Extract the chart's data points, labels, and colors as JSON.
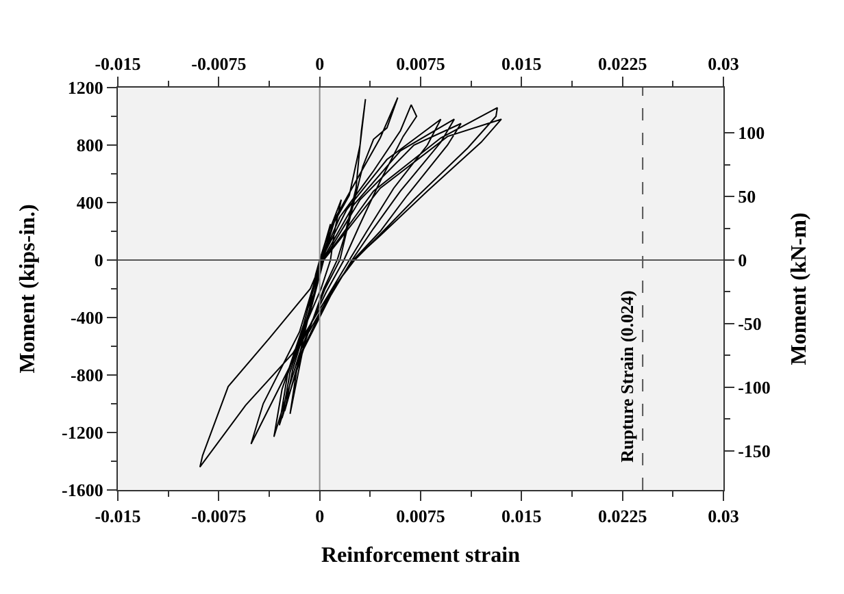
{
  "chart_data": {
    "type": "line",
    "xlabel": "Reinforcement strain",
    "ylabel": "Moment (kips-in.)",
    "y2label": "Moment (kN-m)",
    "xlim": [
      -0.015,
      0.03
    ],
    "xticks": [
      -0.015,
      -0.0075,
      0,
      0.0075,
      0.015,
      0.0225,
      0.03
    ],
    "x2lim": [
      -0.015,
      0.03
    ],
    "x2ticks": [
      -0.015,
      -0.0075,
      0,
      0.0075,
      0.015,
      0.0225,
      0.03
    ],
    "ylim": [
      -1600,
      1200
    ],
    "yticks": [
      -1600,
      -1200,
      -800,
      -400,
      0,
      400,
      800,
      1200
    ],
    "y2lim": [
      -180.8,
      135.6
    ],
    "y2ticks": [
      -150,
      -100,
      -50,
      0,
      50,
      100
    ],
    "grid": false,
    "marker": "none",
    "line_style": "solid",
    "ref_lines": [
      {
        "axis": "x",
        "value": 0,
        "color": "#8c8c8c",
        "line_style": "solid"
      },
      {
        "axis": "y",
        "value": 0,
        "color": "#555555",
        "line_style": "solid"
      },
      {
        "axis": "x",
        "value": 0.024,
        "label": "Rupture Strain (0.024)",
        "color": "#555555",
        "line_style": "dashed"
      }
    ],
    "series": [
      {
        "color": "#000000",
        "x": [
          0,
          0.0004,
          0.0008,
          0.0005,
          0.0003,
          -0.0002,
          -0.0006,
          -0.0003,
          0.0,
          0.0007,
          0.0016,
          0.0011,
          0.0008,
          0.0001,
          -0.0009,
          -0.0004,
          0.0001,
          0.001,
          0.0022,
          0.003,
          0.0034,
          0.0031,
          0.0027,
          0.0018,
          0.0013,
          0.0003,
          -0.0012,
          -0.0022,
          -0.0016,
          -0.0006,
          0.0002,
          0.0012,
          0.003,
          0.0045,
          0.0058,
          0.005,
          0.004,
          0.0032,
          0.002,
          0.0015,
          0.0004,
          -0.0015,
          -0.0034,
          -0.0028,
          -0.0012,
          0.0001,
          0.0015,
          0.004,
          0.006,
          0.0068,
          0.0072,
          0.0062,
          0.0045,
          0.003,
          0.0018,
          0.0005,
          -0.002,
          -0.0051,
          -0.0042,
          -0.0015,
          0.0001,
          0.002,
          0.005,
          0.009,
          0.008,
          0.0055,
          0.0035,
          0.0022,
          0.0006,
          -0.002,
          -0.0055,
          -0.0089,
          -0.0087,
          -0.0068,
          -0.0037,
          -0.0007,
          0.0002,
          0.0025,
          0.006,
          0.01,
          0.009,
          0.006,
          0.004,
          0.0024,
          0.0008,
          -0.0012,
          -0.003,
          -0.0024,
          -0.001,
          0.0003,
          0.003,
          0.007,
          0.0105,
          0.0095,
          0.0065,
          0.0045,
          0.0025,
          0.0008,
          -0.0013,
          -0.0028,
          -0.0022,
          -0.0008,
          0.0003,
          0.004,
          0.009,
          0.0132,
          0.0131,
          0.011,
          0.007,
          0.0045,
          0.0026,
          0.0008,
          -0.0014,
          -0.0026,
          -0.002,
          -0.0007,
          0.0003,
          0.0045,
          0.0095,
          0.0135,
          0.012,
          0.008,
          0.0045,
          0.0025,
          0.001,
          -0.0008
        ],
        "values": [
          0,
          120,
          250,
          100,
          0,
          -120,
          -250,
          -100,
          0,
          200,
          420,
          200,
          0,
          -200,
          -420,
          -150,
          0,
          250,
          450,
          800,
          1120,
          900,
          500,
          150,
          0,
          -200,
          -600,
          -1070,
          -700,
          -300,
          0,
          300,
          600,
          850,
          1130,
          920,
          840,
          650,
          200,
          0,
          -200,
          -650,
          -1230,
          -900,
          -450,
          0,
          300,
          620,
          900,
          1080,
          1000,
          860,
          550,
          250,
          0,
          -220,
          -700,
          -1280,
          -1000,
          -500,
          0,
          350,
          700,
          980,
          800,
          500,
          200,
          0,
          -250,
          -650,
          -1010,
          -1440,
          -1360,
          -880,
          -540,
          -200,
          0,
          380,
          760,
          980,
          820,
          480,
          220,
          0,
          -250,
          -620,
          -1150,
          -800,
          -420,
          0,
          420,
          800,
          950,
          800,
          450,
          200,
          0,
          -230,
          -640,
          -1100,
          -780,
          -380,
          0,
          480,
          850,
          1060,
          1000,
          780,
          420,
          180,
          0,
          -220,
          -650,
          -1050,
          -760,
          -360,
          0,
          500,
          860,
          980,
          820,
          480,
          170,
          0,
          -200,
          -500
        ]
      }
    ]
  }
}
